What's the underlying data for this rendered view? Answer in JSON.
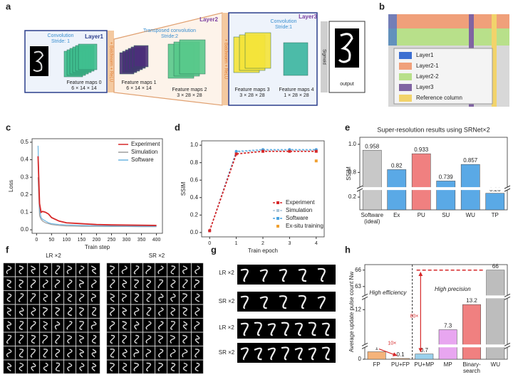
{
  "panel_labels": [
    "a",
    "b",
    "c",
    "d",
    "e",
    "f",
    "g",
    "h"
  ],
  "panel_a": {
    "layer1": {
      "title": "Layer1",
      "op": "Convolution",
      "stride": "Stride: 1",
      "maps": "Feature maps 0",
      "shape": "6 × 14 × 14"
    },
    "layer2": {
      "title": "Layer2",
      "op": "Transposed convolution",
      "stride": "Stride:2",
      "maps1": "Feature maps 1",
      "shape1": "6 × 14 × 14",
      "maps2": "Feature maps 2",
      "shape2": "3 × 28 × 28"
    },
    "layer3": {
      "title": "Layer3",
      "op": "Convolution",
      "stride": "Stride:1",
      "maps3": "Feature maps 3",
      "shape3": "3 × 28 × 28",
      "maps4": "Feature maps 4",
      "shape4": "1 × 28 × 28"
    },
    "norm": "+ Batchnorm + ReLU",
    "sigmoid": "Sigmoid",
    "output": "output"
  },
  "panel_b": {
    "legend": [
      {
        "label": "Layer1",
        "color": "#3d6fd1"
      },
      {
        "label": "Layer2-1",
        "color": "#f0a07a"
      },
      {
        "label": "Layer2-2",
        "color": "#b8e08a"
      },
      {
        "label": "Layer3",
        "color": "#8064a2"
      },
      {
        "label": "Reference column",
        "color": "#f2d36b"
      }
    ]
  },
  "panel_f": {
    "left": "LR ×2",
    "right": "SR ×2"
  },
  "panel_g": {
    "rows": [
      "LR ×2",
      "SR ×2",
      "LR ×2",
      "SR ×2"
    ]
  },
  "chart_data": [
    {
      "type": "line",
      "xlabel": "Train step",
      "ylabel": "Loss",
      "x": [
        5,
        10,
        15,
        20,
        30,
        40,
        50,
        75,
        100,
        150,
        200,
        250,
        300,
        350,
        400
      ],
      "series": [
        {
          "name": "Experiment",
          "color": "#d62728",
          "values": [
            0.42,
            0.15,
            0.1,
            0.105,
            0.1,
            0.09,
            0.07,
            0.05,
            0.04,
            0.035,
            0.03,
            0.028,
            0.027,
            0.026,
            0.025
          ]
        },
        {
          "name": "Simulation",
          "color": "#9e9e9e",
          "values": [
            0.3,
            0.08,
            0.06,
            0.05,
            0.04,
            0.035,
            0.03,
            0.025,
            0.022,
            0.02,
            0.02,
            0.019,
            0.019,
            0.018,
            0.018
          ]
        },
        {
          "name": "Software",
          "color": "#6cb4e0",
          "values": [
            0.48,
            0.12,
            0.07,
            0.06,
            0.05,
            0.04,
            0.035,
            0.03,
            0.028,
            0.025,
            0.023,
            0.022,
            0.021,
            0.02,
            0.02
          ]
        }
      ],
      "xlim": [
        -15,
        420
      ],
      "xticks": [
        0,
        50,
        100,
        150,
        200,
        250,
        300,
        350,
        400
      ],
      "ylim": [
        -0.02,
        0.52
      ],
      "yticks": [
        {
          "value": 0,
          "label": "0.0"
        },
        0.1,
        0.2,
        0.3,
        0.4,
        0.5
      ],
      "legend": "upper right"
    },
    {
      "type": "line",
      "xlabel": "Train epoch",
      "ylabel": "SSIM",
      "dashed": true,
      "markers": true,
      "x": [
        0,
        1,
        2,
        3,
        4
      ],
      "series": [
        {
          "name": "Experiment",
          "color": "#d62728",
          "marker": "square",
          "values": [
            0.02,
            0.9,
            0.93,
            0.93,
            0.93
          ]
        },
        {
          "name": "Simulation",
          "color": "#a9c4d8",
          "marker": "circle",
          "values": [
            0.02,
            0.92,
            0.94,
            0.94,
            0.94
          ]
        },
        {
          "name": "Software",
          "color": "#4aa3df",
          "marker": "circle",
          "values": [
            0.02,
            0.93,
            0.95,
            0.95,
            0.95
          ]
        },
        {
          "name": "Ex-situ training",
          "color": "#f0a030",
          "marker": "square",
          "line": false,
          "values": [
            null,
            null,
            null,
            null,
            0.82
          ]
        }
      ],
      "xlim": [
        -0.3,
        4.3
      ],
      "xticks": [
        0,
        1,
        2,
        3,
        4
      ],
      "ylim": [
        -0.05,
        1.05
      ],
      "yticks": [
        {
          "value": 0,
          "label": "0.0"
        },
        0.2,
        0.4,
        0.6,
        0.8,
        {
          "value": 1,
          "label": "1.0"
        }
      ],
      "legend": "lower right"
    },
    {
      "type": "bar",
      "title": "Super-resolution results using SRNet×2",
      "ylabel": "SSIM",
      "categories": [
        "Software (ideal)",
        "Ex",
        "PU",
        "SU",
        "WU",
        "TP"
      ],
      "values": [
        0.958,
        0.82,
        0.933,
        0.739,
        0.857,
        0.26
      ],
      "colors": [
        "#c8c8c8",
        "#5aa9e6",
        "#f08080",
        "#5aa9e6",
        "#5aa9e6",
        "#5aa9e6"
      ],
      "ylim": [
        0,
        1.05
      ],
      "axis_breaks": [
        [
          0.3,
          0.7
        ]
      ],
      "yticks": [
        0.2,
        0.8,
        {
          "value": 1,
          "label": "1.0"
        }
      ]
    },
    {
      "type": "bar",
      "ylabel": "Average update pulse count Nw",
      "categories": [
        "FP",
        "PU+FP",
        "PU+MP",
        "MP",
        "Binary-search",
        "WU"
      ],
      "values": [
        1,
        0.1,
        0.7,
        7.3,
        13.2,
        66
      ],
      "colors": [
        "#f5b37a",
        "#f5b37a",
        "#9ad0ec",
        "#e8a6f0",
        "#f08080",
        "#bdbdbd"
      ],
      "ylim": [
        0,
        67
      ],
      "axis_breaks": [
        [
          1.5,
          4
        ],
        [
          14.5,
          61.5
        ]
      ],
      "yticks": [
        0,
        12,
        63,
        66
      ],
      "annotations": [
        "High efficiency",
        "High precision",
        "10×",
        "80×"
      ]
    }
  ]
}
